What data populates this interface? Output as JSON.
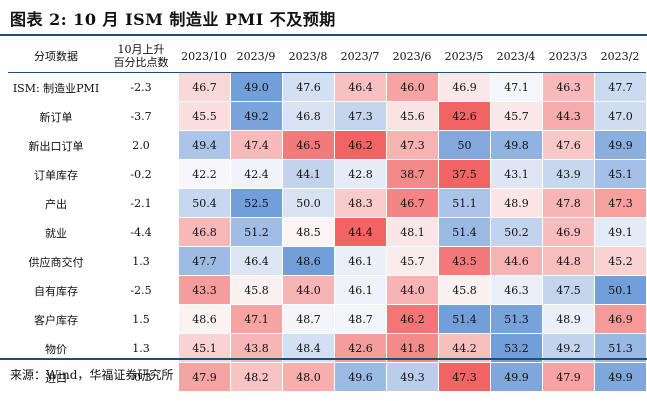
{
  "title": "图表 2: 10 月 ISM 制造业 PMI 不及预期",
  "source": "来源：Wind，华福证券研究所",
  "colors": {
    "low_blue": "#5b8fd3",
    "high_red": "#f04b4b",
    "header_rule": "#1f4e79"
  },
  "chart_data": {
    "type": "table",
    "header_item": "分项数据",
    "header_change_line1": "10月上升",
    "header_change_line2": "百分比点数",
    "columns": [
      "2023/10",
      "2023/9",
      "2023/8",
      "2023/7",
      "2023/6",
      "2023/5",
      "2023/4",
      "2023/3",
      "2023/2"
    ],
    "rows": [
      {
        "name": "ISM: 制造业PMI",
        "change": "-2.3",
        "values": [
          "46.7",
          "49.0",
          "47.6",
          "46.4",
          "46.0",
          "46.9",
          "47.1",
          "46.3",
          "47.7"
        ]
      },
      {
        "name": "新订单",
        "change": "-3.7",
        "values": [
          "45.5",
          "49.2",
          "46.8",
          "47.3",
          "45.6",
          "42.6",
          "45.7",
          "44.3",
          "47.0"
        ]
      },
      {
        "name": "新出口订单",
        "change": "2.0",
        "values": [
          "49.4",
          "47.4",
          "46.5",
          "46.2",
          "47.3",
          "50",
          "49.8",
          "47.6",
          "49.9"
        ]
      },
      {
        "name": "订单库存",
        "change": "-0.2",
        "values": [
          "42.2",
          "42.4",
          "44.1",
          "42.8",
          "38.7",
          "37.5",
          "43.1",
          "43.9",
          "45.1"
        ]
      },
      {
        "name": "产出",
        "change": "-2.1",
        "values": [
          "50.4",
          "52.5",
          "50.0",
          "48.3",
          "46.7",
          "51.1",
          "48.9",
          "47.8",
          "47.3"
        ]
      },
      {
        "name": "就业",
        "change": "-4.4",
        "values": [
          "46.8",
          "51.2",
          "48.5",
          "44.4",
          "48.1",
          "51.4",
          "50.2",
          "46.9",
          "49.1"
        ]
      },
      {
        "name": "供应商交付",
        "change": "1.3",
        "values": [
          "47.7",
          "46.4",
          "48.6",
          "46.1",
          "45.7",
          "43.5",
          "44.6",
          "44.8",
          "45.2"
        ]
      },
      {
        "name": "自有库存",
        "change": "-2.5",
        "values": [
          "43.3",
          "45.8",
          "44.0",
          "46.1",
          "44.0",
          "45.8",
          "46.3",
          "47.5",
          "50.1"
        ]
      },
      {
        "name": "客户库存",
        "change": "1.5",
        "values": [
          "48.6",
          "47.1",
          "48.7",
          "48.7",
          "46.2",
          "51.4",
          "51.3",
          "48.9",
          "46.9"
        ]
      },
      {
        "name": "物价",
        "change": "1.3",
        "values": [
          "45.1",
          "43.8",
          "48.4",
          "42.6",
          "41.8",
          "44.2",
          "53.2",
          "49.2",
          "51.3"
        ]
      },
      {
        "name": "进口",
        "change": "-0.3",
        "values": [
          "47.9",
          "48.2",
          "48.0",
          "49.6",
          "49.3",
          "47.3",
          "49.9",
          "47.9",
          "49.9"
        ]
      }
    ]
  }
}
